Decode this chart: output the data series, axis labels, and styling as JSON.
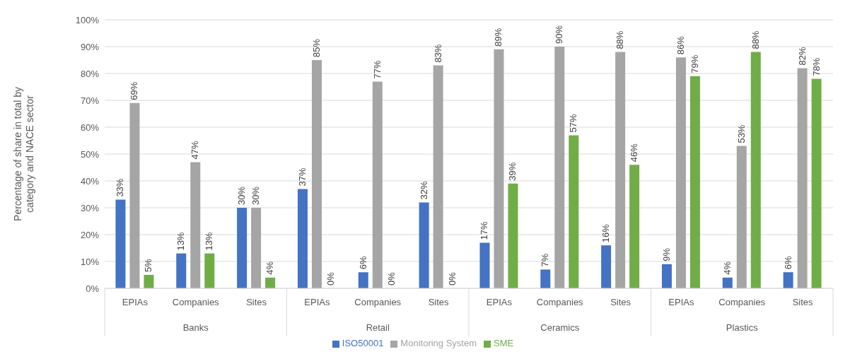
{
  "chart_data": {
    "type": "bar",
    "ylabel": "Percentage of share in total by category and NACE sector",
    "categories": [
      "EPIAs",
      "Companies",
      "Sites",
      "EPIAs",
      "Companies",
      "Sites",
      "EPIAs",
      "Companies",
      "Sites",
      "EPIAs",
      "Companies",
      "Sites"
    ],
    "annotations": [
      "Banks",
      "Retail",
      "Ceramics",
      "Plastics"
    ],
    "series": [
      {
        "name": "ISO50001",
        "color": "#4472c4",
        "values": [
          33,
          13,
          30,
          37,
          6,
          32,
          17,
          7,
          16,
          9,
          4,
          6
        ],
        "value_labels": [
          "33%",
          "13%",
          "30%",
          "37%",
          "6%",
          "32%",
          "17%",
          "7%",
          "16%",
          "9%",
          "4%",
          "6%"
        ]
      },
      {
        "name": "Monitoring System",
        "color": "#a5a5a5",
        "values": [
          69,
          47,
          30,
          85,
          77,
          83,
          89,
          90,
          88,
          86,
          53,
          82
        ],
        "value_labels": [
          "69%",
          "47%",
          "30%",
          "85%",
          "77%",
          "83%",
          "89%",
          "90%",
          "88%",
          "86%",
          "53%",
          "82%"
        ]
      },
      {
        "name": "SME",
        "color": "#70ad47",
        "values": [
          5,
          13,
          4,
          0,
          0,
          0,
          39,
          57,
          46,
          79,
          88,
          78
        ],
        "value_labels": [
          "5%",
          "13%",
          "4%",
          "0%",
          "0%",
          "0%",
          "39%",
          "57%",
          "46%",
          "79%",
          "88%",
          "78%"
        ]
      }
    ],
    "ylim": [
      0,
      100
    ],
    "yticks": [
      {
        "value": 0,
        "label": "0%"
      },
      {
        "value": 10,
        "label": "10%"
      },
      {
        "value": 20,
        "label": "20%"
      },
      {
        "value": 30,
        "label": "30%"
      },
      {
        "value": 40,
        "label": "40%"
      },
      {
        "value": 50,
        "label": "50%"
      },
      {
        "value": 60,
        "label": "60%"
      },
      {
        "value": 70,
        "label": "70%"
      },
      {
        "value": 80,
        "label": "80%"
      },
      {
        "value": 90,
        "label": "90%"
      },
      {
        "value": 100,
        "label": "100%"
      }
    ],
    "grid": "y",
    "legend": "bottom"
  }
}
